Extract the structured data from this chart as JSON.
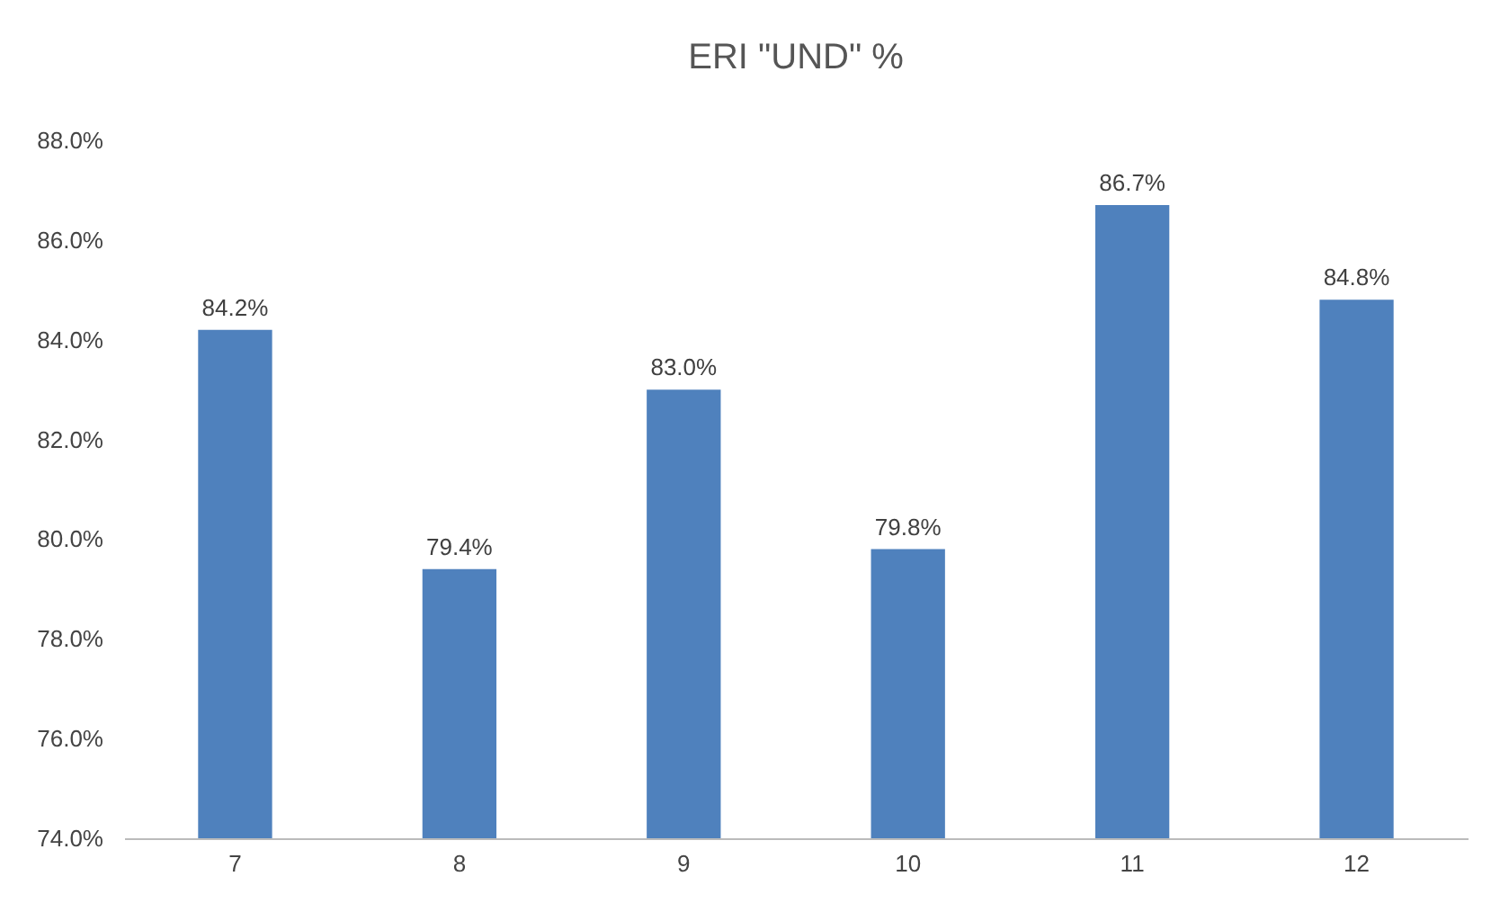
{
  "chart_data": {
    "type": "bar",
    "title": "ERI \"UND\" %",
    "categories": [
      "7",
      "8",
      "9",
      "10",
      "11",
      "12"
    ],
    "values": [
      84.2,
      79.4,
      83.0,
      79.8,
      86.7,
      84.8
    ],
    "value_labels": [
      "84.2%",
      "79.4%",
      "83.0%",
      "79.8%",
      "86.7%",
      "84.8%"
    ],
    "color": "#4f81bd",
    "ylim": [
      74,
      88
    ],
    "yticks": [
      {
        "value": 74,
        "label": "74.0%"
      },
      {
        "value": 76,
        "label": "76.0%"
      },
      {
        "value": 78,
        "label": "78.0%"
      },
      {
        "value": 80,
        "label": "80.0%"
      },
      {
        "value": 82,
        "label": "82.0%"
      },
      {
        "value": 84,
        "label": "84.0%"
      },
      {
        "value": 86,
        "label": "86.0%"
      },
      {
        "value": 88,
        "label": "88.0%"
      }
    ]
  }
}
